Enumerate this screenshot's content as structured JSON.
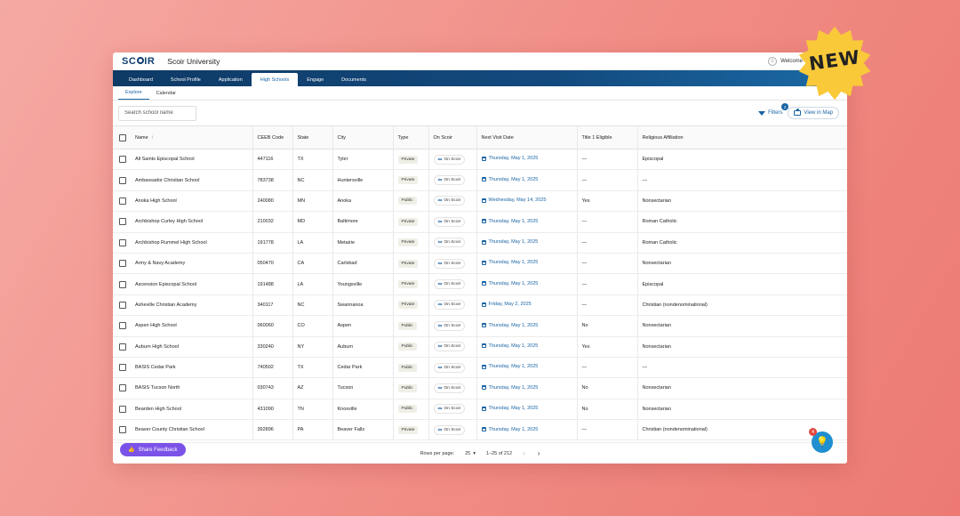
{
  "brand": {
    "logo": "SCOIR",
    "app_title": "Scoir University",
    "welcome": "Welcome"
  },
  "nav": [
    "Dashboard",
    "School Profile",
    "Application",
    "High Schools",
    "Engage",
    "Documents"
  ],
  "nav_active": "High Schools",
  "subtabs": [
    "Explore",
    "Calendar"
  ],
  "search": {
    "placeholder": "Search school name"
  },
  "filters": {
    "label": "Filters",
    "count": "2"
  },
  "map_button": "View in Map",
  "columns": [
    "Name",
    "CEEB Code",
    "State",
    "City",
    "Type",
    "On Scoir",
    "Next Visit Date",
    "Title 1 Eligible",
    "Religious Affiliation"
  ],
  "on_scoir_label": "On Scoir",
  "rows": [
    {
      "name": "All Saints Episcopal School",
      "ceeb": "447116",
      "state": "TX",
      "city": "Tyler",
      "type": "Private",
      "visit": "Thursday, May 1, 2025",
      "title1": "—",
      "religion": "Episcopal"
    },
    {
      "name": "Ambassador Christian School",
      "ceeb": "783738",
      "state": "NC",
      "city": "Huntersville",
      "type": "Private",
      "visit": "Thursday, May 1, 2025",
      "title1": "—",
      "religion": "—"
    },
    {
      "name": "Anoka High School",
      "ceeb": "240080",
      "state": "MN",
      "city": "Anoka",
      "type": "Public",
      "visit": "Wednesday, May 14, 2025",
      "title1": "Yes",
      "religion": "Nonsectarian"
    },
    {
      "name": "Archbishop Curley High School",
      "ceeb": "210032",
      "state": "MD",
      "city": "Baltimore",
      "type": "Private",
      "visit": "Thursday, May 1, 2025",
      "title1": "—",
      "religion": "Roman Catholic"
    },
    {
      "name": "Archbishop Rummel High School",
      "ceeb": "191778",
      "state": "LA",
      "city": "Metairie",
      "type": "Private",
      "visit": "Thursday, May 1, 2025",
      "title1": "—",
      "religion": "Roman Catholic"
    },
    {
      "name": "Army & Navy Academy",
      "ceeb": "050470",
      "state": "CA",
      "city": "Carlsbad",
      "type": "Private",
      "visit": "Thursday, May 1, 2025",
      "title1": "—",
      "religion": "Nonsectarian"
    },
    {
      "name": "Ascension Episcopal School",
      "ceeb": "191488",
      "state": "LA",
      "city": "Youngsville",
      "type": "Private",
      "visit": "Thursday, May 1, 2025",
      "title1": "—",
      "religion": "Episcopal"
    },
    {
      "name": "Asheville Christian Academy",
      "ceeb": "340117",
      "state": "NC",
      "city": "Swannanoa",
      "type": "Private",
      "visit": "Friday, May 2, 2025",
      "title1": "—",
      "religion": "Christian (nondenominational)"
    },
    {
      "name": "Aspen High School",
      "ceeb": "060060",
      "state": "CO",
      "city": "Aspen",
      "type": "Public",
      "visit": "Thursday, May 1, 2025",
      "title1": "No",
      "religion": "Nonsectarian"
    },
    {
      "name": "Auburn High School",
      "ceeb": "330240",
      "state": "NY",
      "city": "Auburn",
      "type": "Public",
      "visit": "Thursday, May 1, 2025",
      "title1": "Yes",
      "religion": "Nonsectarian"
    },
    {
      "name": "BASIS Cedar Park",
      "ceeb": "740502",
      "state": "TX",
      "city": "Cedar Park",
      "type": "Public",
      "visit": "Thursday, May 1, 2025",
      "title1": "—",
      "religion": "—"
    },
    {
      "name": "BASIS Tucson North",
      "ceeb": "030743",
      "state": "AZ",
      "city": "Tucson",
      "type": "Public",
      "visit": "Thursday, May 1, 2025",
      "title1": "No",
      "religion": "Nonsectarian"
    },
    {
      "name": "Bearden High School",
      "ceeb": "431090",
      "state": "TN",
      "city": "Knoxville",
      "type": "Public",
      "visit": "Thursday, May 1, 2025",
      "title1": "No",
      "religion": "Nonsectarian"
    },
    {
      "name": "Beaver County Christian School",
      "ceeb": "392896",
      "state": "PA",
      "city": "Beaver Falls",
      "type": "Private",
      "visit": "Thursday, May 1, 2025",
      "title1": "—",
      "religion": "Christian (nondenominational)"
    }
  ],
  "footer": {
    "rows_per_page_label": "Rows per page:",
    "rows_per_page": "25",
    "range": "1–25 of 212"
  },
  "feedback_button": "Share Feedback",
  "help": {
    "badge": "4"
  },
  "new_badge": "NEW",
  "colors": {
    "primary": "#1a64a4",
    "nav_dark": "#0e3a66",
    "feedback": "#7b52e8",
    "help": "#1f8fcf",
    "badge_star": "#f9c93a"
  }
}
